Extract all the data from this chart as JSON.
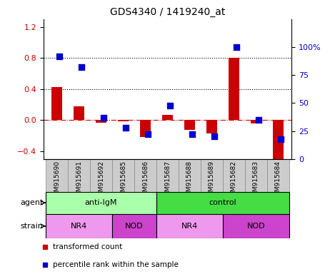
{
  "title": "GDS4340 / 1419240_at",
  "samples": [
    "GSM915690",
    "GSM915691",
    "GSM915692",
    "GSM915685",
    "GSM915686",
    "GSM915687",
    "GSM915688",
    "GSM915689",
    "GSM915682",
    "GSM915683",
    "GSM915684"
  ],
  "transformed_count": [
    0.43,
    0.18,
    -0.03,
    -0.02,
    -0.22,
    0.07,
    -0.13,
    -0.17,
    0.8,
    -0.04,
    -0.52
  ],
  "percentile_rank": [
    92,
    82,
    37,
    28,
    22,
    48,
    22,
    20,
    100,
    35,
    18
  ],
  "ylim_left": [
    -0.5,
    1.3
  ],
  "ylim_right": [
    0,
    125
  ],
  "yticks_left": [
    -0.4,
    0.0,
    0.4,
    0.8,
    1.2
  ],
  "yticks_right": [
    0,
    25,
    50,
    75,
    100
  ],
  "hlines": [
    0.4,
    0.8
  ],
  "bar_color": "#cc0000",
  "dot_color": "#0000cc",
  "agent_groups": [
    {
      "label": "anti-IgM",
      "start": 0,
      "end": 5,
      "color": "#aaffaa"
    },
    {
      "label": "control",
      "start": 5,
      "end": 11,
      "color": "#44dd44"
    }
  ],
  "strain_groups": [
    {
      "label": "NR4",
      "start": 0,
      "end": 3,
      "color": "#ee99ee"
    },
    {
      "label": "NOD",
      "start": 3,
      "end": 5,
      "color": "#cc44cc"
    },
    {
      "label": "NR4",
      "start": 5,
      "end": 8,
      "color": "#ee99ee"
    },
    {
      "label": "NOD",
      "start": 8,
      "end": 11,
      "color": "#cc44cc"
    }
  ],
  "legend_items": [
    {
      "label": "transformed count",
      "color": "#cc0000"
    },
    {
      "label": "percentile rank within the sample",
      "color": "#0000cc"
    }
  ],
  "zero_line_color": "#cc0000",
  "tick_label_color_left": "#cc0000",
  "tick_label_color_right": "#0000cc",
  "bar_width": 0.5,
  "dot_size": 40,
  "sample_box_color": "#cccccc",
  "sample_box_edge": "#888888"
}
